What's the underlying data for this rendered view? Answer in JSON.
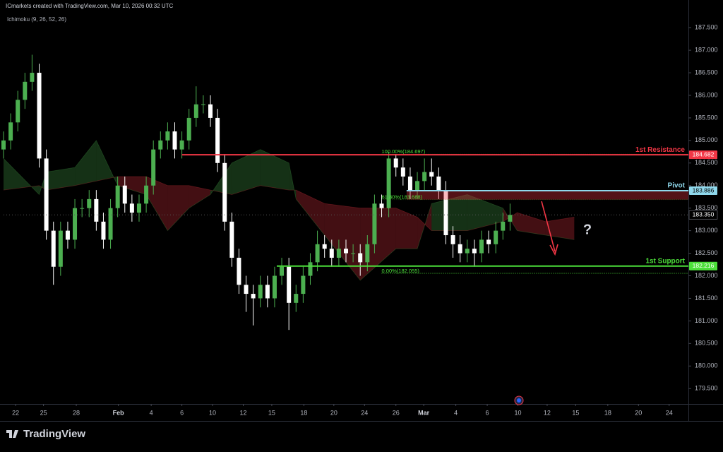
{
  "header": {
    "title": "ICmarkets created with TradingView.com, Mar 10, 2026 00:32 UTC",
    "indicator": "Ichimoku (9, 26, 52, 26)",
    "logo": "TradingView"
  },
  "chart_data": {
    "type": "candlestick",
    "xlim": [
      0,
      96
    ],
    "ylim": [
      179.19,
      187.8
    ],
    "yticks": [
      {
        "value": 179.5,
        "label": "179.500"
      },
      {
        "value": 180,
        "label": "180.000"
      },
      {
        "value": 180.5,
        "label": "180.500"
      },
      {
        "value": 181,
        "label": "181.000"
      },
      {
        "value": 181.5,
        "label": "181.500"
      },
      {
        "value": 182,
        "label": "182.000"
      },
      {
        "value": 182.5,
        "label": "182.500"
      },
      {
        "value": 183,
        "label": "183.000"
      },
      {
        "value": 183.5,
        "label": "183.500"
      },
      {
        "value": 184,
        "label": "184.000"
      },
      {
        "value": 184.5,
        "label": "184.500"
      },
      {
        "value": 185,
        "label": "185.000"
      },
      {
        "value": 185.5,
        "label": "185.500"
      },
      {
        "value": 186,
        "label": "186.000"
      },
      {
        "value": 186.5,
        "label": "186.500"
      },
      {
        "value": 187,
        "label": "187.000"
      },
      {
        "value": 187.5,
        "label": "187.500"
      }
    ],
    "xticks": [
      {
        "value": 1.7,
        "label": "22"
      },
      {
        "value": 5.6,
        "label": "25"
      },
      {
        "value": 10.2,
        "label": "28"
      },
      {
        "value": 16.1,
        "label": "Feb"
      },
      {
        "value": 20.7,
        "label": "4"
      },
      {
        "value": 25.0,
        "label": "6"
      },
      {
        "value": 29.3,
        "label": "10"
      },
      {
        "value": 33.6,
        "label": "12"
      },
      {
        "value": 37.6,
        "label": "15"
      },
      {
        "value": 42.1,
        "label": "18"
      },
      {
        "value": 46.3,
        "label": "20"
      },
      {
        "value": 50.6,
        "label": "24"
      },
      {
        "value": 55.0,
        "label": "26"
      },
      {
        "value": 58.9,
        "label": "Mar"
      },
      {
        "value": 63.4,
        "label": "4"
      },
      {
        "value": 67.8,
        "label": "6"
      },
      {
        "value": 72.1,
        "label": "10"
      },
      {
        "value": 76.2,
        "label": "12"
      },
      {
        "value": 80.2,
        "label": "15"
      },
      {
        "value": 84.7,
        "label": "18"
      },
      {
        "value": 89.0,
        "label": "20"
      },
      {
        "value": 93.3,
        "label": "24"
      }
    ],
    "up_color": "#4caf50",
    "down_color": "#ffffff",
    "candles": {
      "x": [
        0,
        1,
        2,
        3,
        4,
        5,
        6,
        7,
        8,
        9,
        10,
        11,
        12,
        13,
        14,
        15,
        16,
        17,
        18,
        19,
        20,
        21,
        22,
        23,
        24,
        25,
        26,
        27,
        28,
        29,
        30,
        31,
        32,
        33,
        34,
        35,
        36,
        37,
        38,
        39,
        40,
        41,
        42,
        43,
        44,
        45,
        46,
        47,
        48,
        49,
        50,
        51,
        52,
        53,
        54,
        55,
        56,
        57,
        58,
        59,
        60,
        61,
        62,
        63,
        64,
        65,
        66,
        67,
        68,
        69,
        70,
        71
      ],
      "open": [
        184.8,
        185.0,
        185.4,
        185.9,
        186.3,
        186.5,
        184.6,
        183.0,
        182.2,
        183.0,
        182.8,
        183.5,
        183.5,
        183.7,
        183.2,
        182.8,
        183.5,
        184.0,
        183.6,
        183.4,
        183.6,
        184.0,
        184.8,
        185.0,
        185.2,
        184.8,
        185.0,
        185.5,
        185.8,
        185.8,
        185.5,
        184.5,
        183.2,
        182.4,
        181.8,
        181.6,
        181.5,
        181.8,
        181.5,
        182.0,
        182.2,
        181.4,
        181.6,
        182.0,
        182.3,
        182.7,
        182.6,
        182.4,
        182.6,
        182.5,
        182.5,
        182.3,
        182.7,
        183.6,
        183.5,
        184.6,
        184.4,
        184.2,
        183.9,
        184.1,
        184.3,
        184.2,
        183.9,
        182.9,
        182.7,
        182.5,
        182.6,
        182.5,
        182.8,
        182.7,
        183.0,
        183.2
      ],
      "high": [
        185.2,
        185.6,
        186.1,
        186.5,
        186.9,
        186.7,
        184.8,
        183.2,
        183.2,
        183.2,
        183.7,
        183.7,
        183.9,
        183.9,
        183.4,
        183.7,
        184.2,
        184.2,
        183.8,
        183.8,
        184.2,
        185.0,
        185.2,
        185.4,
        185.4,
        185.2,
        185.7,
        186.2,
        186.0,
        186.0,
        185.7,
        184.7,
        183.4,
        182.6,
        182.0,
        181.8,
        182.0,
        182.0,
        182.2,
        182.4,
        182.4,
        181.8,
        182.2,
        182.5,
        183.0,
        182.9,
        182.8,
        182.8,
        182.8,
        182.7,
        182.7,
        182.9,
        183.8,
        183.8,
        184.75,
        184.7,
        184.6,
        184.4,
        184.3,
        184.6,
        184.6,
        184.4,
        184.1,
        183.1,
        182.9,
        182.8,
        182.8,
        183.0,
        183.0,
        183.2,
        183.4,
        183.6
      ],
      "low": [
        184.6,
        184.8,
        185.2,
        185.7,
        186.1,
        184.4,
        182.8,
        181.8,
        182.0,
        182.6,
        182.6,
        183.3,
        183.3,
        183.0,
        182.6,
        182.6,
        183.3,
        183.4,
        183.2,
        183.2,
        183.4,
        183.8,
        184.6,
        184.8,
        184.6,
        184.6,
        184.8,
        185.3,
        185.6,
        185.3,
        184.3,
        183.0,
        182.2,
        181.6,
        181.2,
        180.9,
        181.3,
        181.3,
        181.3,
        181.8,
        180.8,
        181.2,
        181.4,
        181.8,
        182.1,
        182.4,
        182.2,
        182.2,
        182.3,
        182.3,
        182.0,
        182.1,
        182.5,
        183.3,
        183.3,
        184.2,
        184.0,
        183.7,
        183.7,
        183.9,
        184.0,
        183.7,
        182.7,
        182.4,
        182.3,
        182.3,
        182.2,
        182.3,
        182.5,
        182.5,
        182.8,
        183.0
      ],
      "close": [
        185.0,
        185.4,
        185.9,
        186.3,
        186.5,
        184.6,
        183.0,
        182.2,
        183.0,
        182.8,
        183.5,
        183.5,
        183.7,
        183.2,
        182.8,
        183.5,
        184.0,
        183.6,
        183.4,
        183.6,
        184.0,
        184.8,
        185.0,
        185.2,
        184.8,
        185.0,
        185.5,
        185.8,
        185.8,
        185.5,
        184.5,
        183.2,
        182.4,
        181.8,
        181.6,
        181.5,
        181.8,
        181.5,
        182.0,
        182.2,
        181.4,
        181.6,
        182.0,
        182.3,
        182.7,
        182.6,
        182.4,
        182.6,
        182.5,
        182.5,
        182.3,
        182.7,
        183.6,
        183.5,
        184.6,
        184.4,
        184.2,
        183.9,
        184.1,
        184.3,
        184.2,
        183.9,
        182.9,
        182.7,
        182.5,
        182.6,
        182.5,
        182.8,
        182.7,
        183.0,
        183.2,
        183.35
      ]
    },
    "ichimoku": {
      "x": [
        0,
        5,
        6,
        10,
        13,
        16,
        20,
        23,
        26,
        29,
        32,
        36,
        40,
        41,
        45,
        50,
        55,
        58,
        60,
        65,
        70,
        72,
        76,
        80
      ],
      "span_a": [
        184.6,
        183.8,
        184.3,
        184.4,
        185.0,
        184.0,
        183.8,
        183.0,
        183.5,
        183.8,
        184.5,
        184.8,
        184.5,
        183.7,
        182.9,
        181.9,
        182.6,
        182.6,
        183.6,
        183.8,
        183.5,
        183.0,
        182.9,
        182.8
      ],
      "span_b": [
        183.9,
        184.0,
        183.9,
        184.0,
        184.1,
        184.2,
        184.2,
        184.0,
        184.0,
        183.9,
        183.8,
        184.0,
        183.9,
        183.9,
        183.6,
        183.5,
        183.5,
        183.3,
        183.0,
        183.0,
        183.2,
        183.4,
        183.2,
        183.3
      ],
      "bull_color": "rgba(76,175,80,0.28)",
      "bear_color": "rgba(242,54,69,0.28)"
    },
    "levels": {
      "names": [
        "1st Resistance",
        "Pivot",
        "1st Support"
      ],
      "values": [
        184.682,
        183.886,
        182.216
      ],
      "value_labels": [
        "184.682",
        "183.886",
        "182.216"
      ],
      "x_start": [
        25,
        56.5,
        38.3
      ],
      "colors": [
        "#f23645",
        "#8fd8ec",
        "#4cdf3a"
      ]
    },
    "fib": {
      "values": [
        184.697,
        183.688,
        182.055
      ],
      "labels": [
        "100.00%(184.697)",
        "61.80%(183.688)",
        "0.00%(182.055)"
      ],
      "x_start": 53,
      "color": "#4cdf3a"
    },
    "last_price": 183.35,
    "last_price_label": "183.350",
    "annotation": "?"
  }
}
